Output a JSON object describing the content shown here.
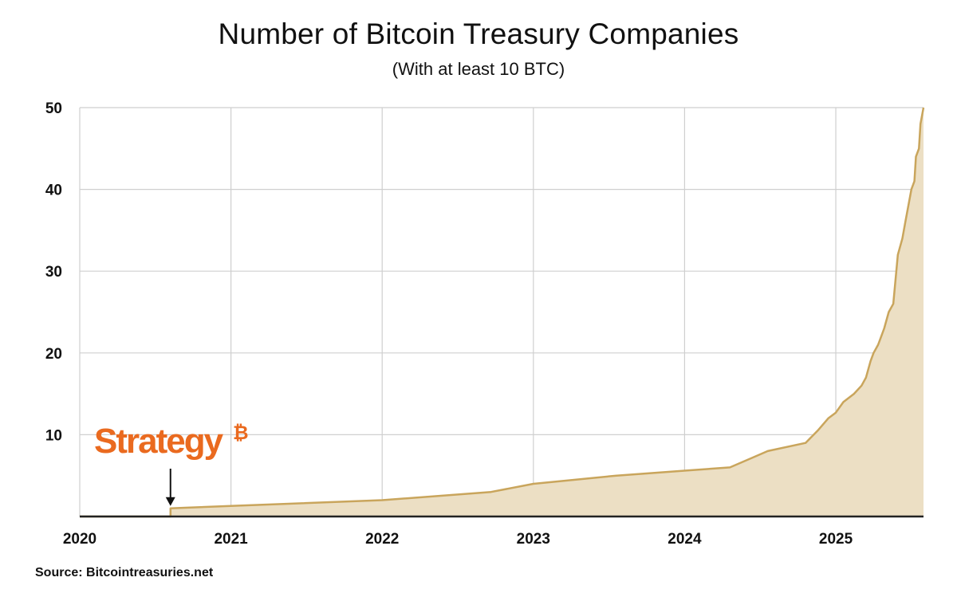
{
  "chart_data": {
    "type": "area",
    "title": "Number of Bitcoin Treasury Companies",
    "subtitle": "(With at least 10 BTC)",
    "xlabel": "",
    "ylabel": "",
    "xlim": [
      2020.0,
      2025.58
    ],
    "ylim": [
      0,
      50
    ],
    "x_ticks": [
      "2020",
      "2021",
      "2022",
      "2023",
      "2024",
      "2025"
    ],
    "y_ticks": [
      "10",
      "20",
      "30",
      "40",
      "50"
    ],
    "grid": true,
    "series": [
      {
        "color": "#c9a55c",
        "fill": "#ecdfc4",
        "x": [
          2020.0,
          2020.6,
          2020.6,
          2021.0,
          2022.0,
          2022.72,
          2023.0,
          2023.55,
          2024.0,
          2024.3,
          2024.45,
          2024.55,
          2024.8,
          2024.88,
          2024.95,
          2025.0,
          2025.05,
          2025.12,
          2025.17,
          2025.2,
          2025.23,
          2025.25,
          2025.28,
          2025.3,
          2025.32,
          2025.35,
          2025.38,
          2025.4,
          2025.41,
          2025.44,
          2025.46,
          2025.48,
          2025.5,
          2025.52,
          2025.53,
          2025.55,
          2025.56,
          2025.58
        ],
        "values": [
          0,
          0,
          1,
          1.3,
          2,
          3,
          4,
          5,
          5.6,
          6,
          7.2,
          8,
          9,
          10.5,
          12,
          12.7,
          14,
          15,
          16,
          17,
          19,
          20,
          21,
          22,
          23,
          25,
          26,
          30,
          32,
          34,
          36,
          38,
          40,
          41,
          44,
          45,
          48,
          50
        ]
      }
    ],
    "annotations": [
      {
        "text": "Strategy",
        "symbol": "₿",
        "color": "#ea6a1f",
        "x": 2020.6,
        "arrow_to_y": 1
      }
    ]
  },
  "source_label": "Source: Bitcointreasuries.net"
}
